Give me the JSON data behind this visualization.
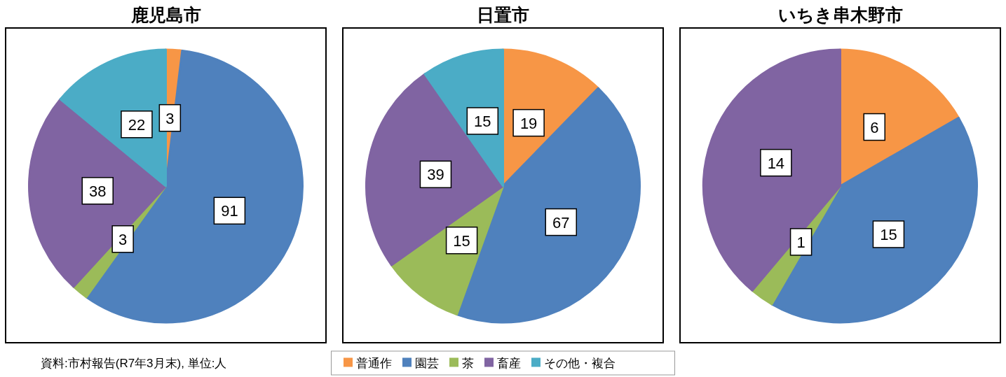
{
  "chart_data": [
    {
      "type": "pie",
      "title": "鹿児島市",
      "categories": [
        null,
        null,
        null,
        null,
        null
      ],
      "values": [
        3,
        91,
        3,
        38,
        22
      ],
      "colors": [
        "#f79646",
        "#4f81bd",
        "#9bbb59",
        "#8064a2",
        "#4bacc6"
      ],
      "data_labels": true,
      "annotations": [
        "資料:市村報告(R7年3月末), 単位:人"
      ]
    },
    {
      "type": "pie",
      "title": "日置市",
      "categories": [
        "普通作",
        "園芸",
        "茶",
        "畜産",
        "その他・複合"
      ],
      "values": [
        19,
        67,
        15,
        39,
        15
      ],
      "colors": [
        "#f79646",
        "#4f81bd",
        "#9bbb59",
        "#8064a2",
        "#4bacc6"
      ],
      "data_labels": true,
      "legend": "bottom"
    },
    {
      "type": "pie",
      "title": "いちき串木野市",
      "categories": [
        null,
        null,
        null,
        null
      ],
      "values": [
        6,
        15,
        1,
        14
      ],
      "colors": [
        "#f79646",
        "#4f81bd",
        "#9bbb59",
        "#8064a2"
      ],
      "data_labels": true
    }
  ]
}
